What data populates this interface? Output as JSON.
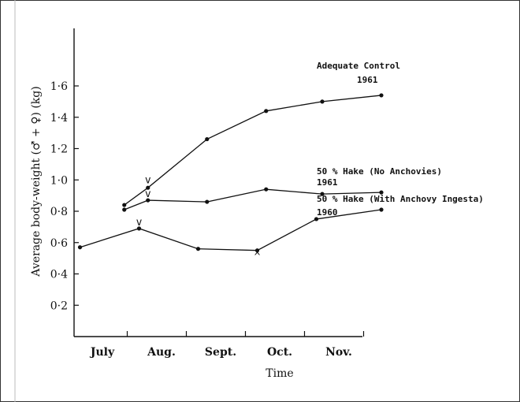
{
  "chart_data": {
    "type": "line",
    "title": "",
    "xlabel": "Time",
    "ylabel": "Average body-weight (♂ + ♀) (kg)",
    "ylim": [
      0,
      1.75
    ],
    "y_ticks": [
      {
        "value": 0.2,
        "label": "0·2"
      },
      {
        "value": 0.4,
        "label": "0·4"
      },
      {
        "value": 0.6,
        "label": "0·6"
      },
      {
        "value": 0.8,
        "label": "0·8"
      },
      {
        "value": 1.0,
        "label": "1·0"
      },
      {
        "value": 1.2,
        "label": "1·2"
      },
      {
        "value": 1.4,
        "label": "1·4"
      },
      {
        "value": 1.6,
        "label": "1·6"
      }
    ],
    "x_months": [
      "July",
      "Aug.",
      "Sept.",
      "Oct.",
      "Nov."
    ],
    "grid": false,
    "series": [
      {
        "name": "Adequate Control",
        "year": "1961",
        "x": [
          0.45,
          0.85,
          1.85,
          2.85,
          3.8,
          4.8
        ],
        "values": [
          0.84,
          0.95,
          1.26,
          1.44,
          1.5,
          1.54
        ]
      },
      {
        "name": "50 % Hake (No Anchovies)",
        "year": "1961",
        "x": [
          0.45,
          0.85,
          1.85,
          2.85,
          3.8,
          4.8
        ],
        "values": [
          0.81,
          0.87,
          0.86,
          0.94,
          0.91,
          0.92
        ]
      },
      {
        "name": "50 % Hake (With Anchovy Ingesta)",
        "year": "1960",
        "x": [
          -0.3,
          0.7,
          1.7,
          2.7,
          3.7,
          4.8
        ],
        "values": [
          0.57,
          0.69,
          0.56,
          0.55,
          0.75,
          0.81
        ]
      }
    ],
    "markers": [
      {
        "symbol": "v",
        "x": 0.85,
        "y": 1.0
      },
      {
        "symbol": "v",
        "x": 0.85,
        "y": 0.91
      },
      {
        "symbol": "v",
        "x": 0.7,
        "y": 0.73
      },
      {
        "symbol": "^",
        "x": 2.7,
        "y": 0.51
      }
    ]
  }
}
